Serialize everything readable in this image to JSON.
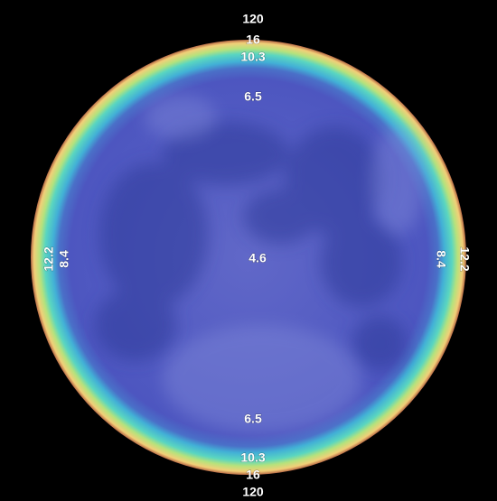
{
  "labels": [
    {
      "text": "120"
    },
    {
      "text": "16"
    },
    {
      "text": "10.3"
    },
    {
      "text": "6.5"
    },
    {
      "text": "4.6"
    },
    {
      "text": "6.5"
    },
    {
      "text": "10.3"
    },
    {
      "text": "16"
    },
    {
      "text": "120"
    },
    {
      "text": "12.2"
    },
    {
      "text": "8.4"
    },
    {
      "text": "8.4"
    },
    {
      "text": "12.2"
    }
  ]
}
